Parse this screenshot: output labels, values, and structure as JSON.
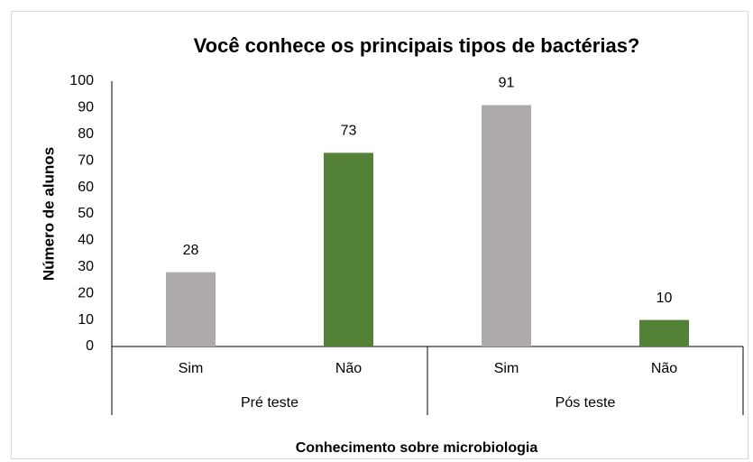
{
  "chart_data": {
    "type": "bar",
    "title": "Você conhece os principais tipos de bactérias?",
    "x_label": "Conhecimento sobre microbiologia",
    "y_label": "Número de alunos",
    "categories": [
      "Sim",
      "Não",
      "Sim",
      "Não"
    ],
    "groups": [
      "Pré teste",
      "Pós teste"
    ],
    "values": [
      28,
      73,
      91,
      10
    ],
    "colors": [
      "#aeaaaa",
      "#538135",
      "#aeaaaa",
      "#538135"
    ],
    "ylim": [
      0,
      100
    ],
    "yticks": [
      0,
      10,
      20,
      30,
      40,
      50,
      60,
      70,
      80,
      90,
      100
    ],
    "grid": false,
    "data_labels": true
  }
}
